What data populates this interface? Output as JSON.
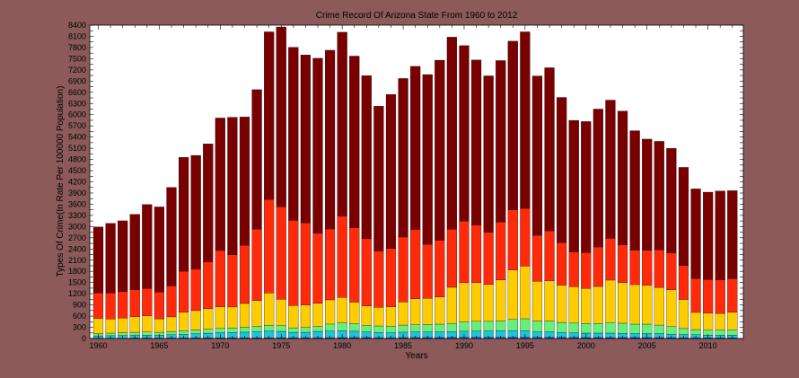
{
  "chart_data": {
    "type": "bar",
    "stacked": true,
    "title": "Crime Record Of Arizona State From 1960 to 2012",
    "xlabel": "Years",
    "ylabel": "Types Of Crime(In Rate Per 100000 Population)",
    "ylim": [
      0,
      8400
    ],
    "xlim": [
      1959.3,
      2012.9
    ],
    "ytick_step": 150,
    "yticks_labels": [
      "0",
      "300",
      "600",
      "900",
      "1200",
      "1500",
      "1800",
      "2100",
      "2400",
      "2700",
      "3000",
      "3300",
      "3600",
      "3900",
      "4200",
      "4500",
      "4800",
      "5100",
      "5400",
      "5700",
      "6000",
      "6300",
      "6600",
      "6900",
      "7200",
      "7500",
      "7800",
      "8100",
      "8400"
    ],
    "xticks": [
      "1960",
      "1965",
      "1970",
      "1975",
      "1980",
      "1985",
      "1990",
      "1995",
      "2000",
      "2005",
      "2010"
    ],
    "grid": false,
    "categories": [
      "1960",
      "1961",
      "1962",
      "1963",
      "1964",
      "1965",
      "1966",
      "1967",
      "1968",
      "1969",
      "1970",
      "1971",
      "1972",
      "1973",
      "1974",
      "1975",
      "1976",
      "1977",
      "1978",
      "1979",
      "1980",
      "1981",
      "1982",
      "1983",
      "1984",
      "1985",
      "1986",
      "1987",
      "1988",
      "1989",
      "1990",
      "1991",
      "1992",
      "1993",
      "1994",
      "1995",
      "1996",
      "1997",
      "1998",
      "1999",
      "2000",
      "2001",
      "2002",
      "2003",
      "2004",
      "2005",
      "2006",
      "2007",
      "2008",
      "2009",
      "2010",
      "2011",
      "2012"
    ],
    "series": [
      {
        "color": "#0d3bd6",
        "values": [
          10,
          10,
          10,
          12,
          12,
          12,
          15,
          15,
          18,
          18,
          20,
          20,
          20,
          20,
          20,
          22,
          22,
          22,
          22,
          22,
          25,
          25,
          25,
          22,
          22,
          25,
          25,
          25,
          25,
          28,
          30,
          30,
          30,
          30,
          30,
          30,
          28,
          28,
          27,
          27,
          25,
          25,
          25,
          25,
          25,
          25,
          25,
          23,
          22,
          20,
          18,
          18,
          18
        ]
      },
      {
        "color": "#1ec3dc",
        "values": [
          60,
          65,
          70,
          75,
          80,
          75,
          85,
          95,
          110,
          125,
          140,
          145,
          150,
          165,
          180,
          170,
          145,
          145,
          170,
          175,
          185,
          170,
          150,
          135,
          130,
          145,
          150,
          150,
          150,
          155,
          165,
          170,
          170,
          180,
          180,
          180,
          150,
          150,
          135,
          125,
          120,
          120,
          120,
          115,
          110,
          110,
          105,
          95,
          85,
          80,
          75,
          75,
          75
        ]
      },
      {
        "color": "#66f07a",
        "values": [
          60,
          70,
          75,
          80,
          80,
          80,
          90,
          95,
          100,
          105,
          110,
          120,
          130,
          140,
          150,
          150,
          120,
          130,
          130,
          190,
          210,
          200,
          180,
          180,
          180,
          190,
          190,
          200,
          210,
          220,
          250,
          260,
          260,
          260,
          300,
          320,
          290,
          290,
          270,
          260,
          260,
          260,
          280,
          270,
          250,
          250,
          230,
          200,
          160,
          140,
          140,
          140,
          140
        ]
      },
      {
        "color": "#ffcc00",
        "values": [
          410,
          380,
          390,
          420,
          440,
          360,
          390,
          500,
          520,
          550,
          580,
          560,
          640,
          690,
          870,
          710,
          600,
          600,
          620,
          650,
          680,
          580,
          520,
          500,
          520,
          620,
          700,
          700,
          730,
          970,
          1050,
          1040,
          990,
          1100,
          1330,
          1410,
          1070,
          1080,
          1000,
          980,
          940,
          990,
          1140,
          1090,
          1060,
          1040,
          1010,
          990,
          780,
          460,
          450,
          440,
          470
        ]
      },
      {
        "color": "#ff2a0a",
        "values": [
          680,
          700,
          710,
          720,
          730,
          720,
          830,
          1100,
          1110,
          1260,
          1510,
          1400,
          1560,
          1920,
          2510,
          2480,
          2280,
          2200,
          1880,
          1900,
          2180,
          1990,
          1800,
          1510,
          1560,
          1740,
          1860,
          1450,
          1520,
          1560,
          1650,
          1540,
          1400,
          1550,
          1610,
          1550,
          1230,
          1340,
          1140,
          930,
          960,
          1060,
          1120,
          1010,
          920,
          940,
          1010,
          990,
          910,
          910,
          900,
          900,
          900
        ]
      },
      {
        "color": "#7a0000",
        "values": [
          1770,
          1860,
          1900,
          2020,
          2250,
          2280,
          2640,
          3050,
          3050,
          3160,
          3550,
          3685,
          3440,
          3735,
          4490,
          4820,
          4640,
          4505,
          4690,
          4790,
          4930,
          4605,
          4370,
          3880,
          4130,
          4250,
          4370,
          4550,
          4825,
          5145,
          4705,
          4425,
          4190,
          4330,
          4520,
          4730,
          4270,
          4370,
          3890,
          3525,
          3510,
          3695,
          3705,
          3585,
          3205,
          2980,
          2905,
          2800,
          2630,
          2400,
          2340,
          2380,
          2360
        ]
      }
    ],
    "annotations": []
  }
}
